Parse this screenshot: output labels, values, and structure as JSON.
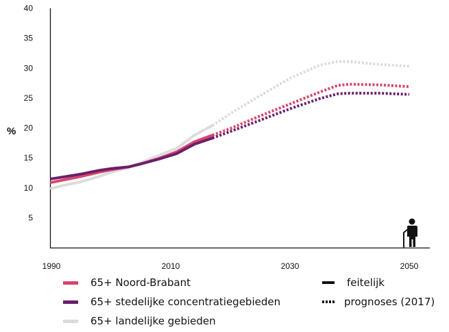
{
  "chart_data": {
    "type": "line",
    "ylabel": "%",
    "xlabel": "",
    "xlim": [
      1990,
      2052
    ],
    "ylim": [
      0,
      40
    ],
    "x_ticks": [
      1990,
      2010,
      2030,
      2050
    ],
    "y_ticks": [
      5,
      10,
      15,
      20,
      25,
      30,
      35,
      40
    ],
    "series": [
      {
        "name": "65+ Noord-Brabant",
        "color": "#d9466b",
        "actual": {
          "x": [
            1990,
            1992,
            1995,
            1998,
            2000,
            2003,
            2005,
            2008,
            2011,
            2014,
            2017
          ],
          "y": [
            10.9,
            11.3,
            11.9,
            12.6,
            13.0,
            13.5,
            14.0,
            14.9,
            16.0,
            17.7,
            18.8
          ]
        },
        "forecast": {
          "x": [
            2017,
            2020,
            2025,
            2030,
            2035,
            2038,
            2040,
            2045,
            2050
          ],
          "y": [
            18.8,
            19.9,
            22.0,
            24.0,
            26.0,
            27.1,
            27.3,
            27.2,
            26.9
          ]
        }
      },
      {
        "name": "65+ stedelijke concentratiegebieden",
        "color": "#6b1f6b",
        "actual": {
          "x": [
            1990,
            1992,
            1995,
            1998,
            2000,
            2003,
            2005,
            2008,
            2011,
            2014,
            2017
          ],
          "y": [
            11.5,
            11.8,
            12.3,
            12.9,
            13.2,
            13.5,
            14.0,
            14.8,
            15.7,
            17.3,
            18.3
          ]
        },
        "forecast": {
          "x": [
            2017,
            2020,
            2025,
            2030,
            2035,
            2038,
            2040,
            2045,
            2050
          ],
          "y": [
            18.3,
            19.4,
            21.3,
            23.2,
            24.9,
            25.7,
            25.8,
            25.8,
            25.6
          ]
        }
      },
      {
        "name": "65+ landelijke gebieden",
        "color": "#dcdcdc",
        "actual": {
          "x": [
            1990,
            1992,
            1995,
            1998,
            2000,
            2003,
            2005,
            2008,
            2011,
            2014,
            2017
          ],
          "y": [
            9.9,
            10.4,
            11.0,
            11.9,
            12.6,
            13.4,
            14.2,
            15.4,
            16.6,
            18.8,
            20.4
          ]
        },
        "forecast": {
          "x": [
            2017,
            2020,
            2025,
            2030,
            2035,
            2038,
            2040,
            2045,
            2050
          ],
          "y": [
            20.4,
            22.4,
            25.4,
            28.3,
            30.5,
            31.1,
            31.1,
            30.6,
            30.3
          ]
        }
      }
    ],
    "line_styles": [
      {
        "style": "solid",
        "label": "feitelijk"
      },
      {
        "style": "dotted",
        "label": "prognoses (2017)"
      }
    ],
    "icon": "elderly-person-with-cane-icon",
    "legend_placement": "bottom",
    "grid": false
  }
}
